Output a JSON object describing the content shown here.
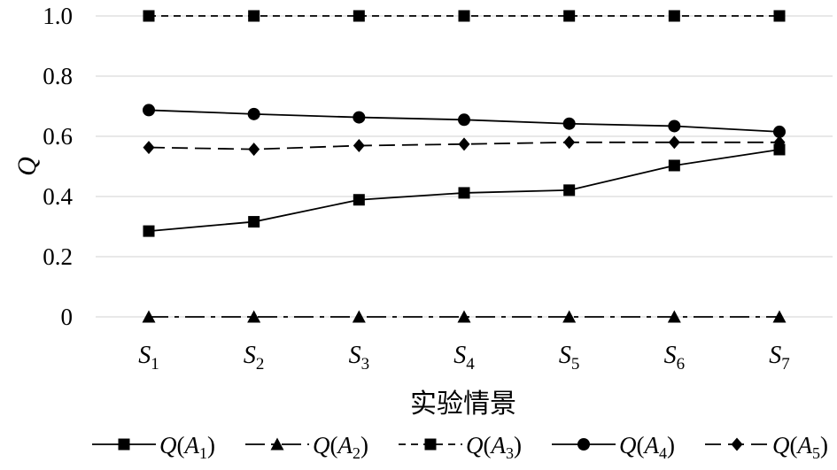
{
  "chart_data": {
    "type": "line",
    "title": "",
    "xlabel": "实验情景",
    "ylabel": "Q",
    "ylim": [
      0,
      1.0
    ],
    "yticks": [
      "0",
      "0.2",
      "0.4",
      "0.6",
      "0.8",
      "1.0"
    ],
    "ytick_values": [
      0,
      0.2,
      0.4,
      0.6,
      0.8,
      1.0
    ],
    "grid": true,
    "legend_position": "bottom",
    "categories": [
      {
        "base": "S",
        "sub": "1"
      },
      {
        "base": "S",
        "sub": "2"
      },
      {
        "base": "S",
        "sub": "3"
      },
      {
        "base": "S",
        "sub": "4"
      },
      {
        "base": "S",
        "sub": "5"
      },
      {
        "base": "S",
        "sub": "6"
      },
      {
        "base": "S",
        "sub": "7"
      }
    ],
    "series": [
      {
        "name": {
          "fn": "Q(",
          "var": "A",
          "sub": "1",
          "close": ")"
        },
        "line": "solid",
        "marker": "square",
        "values": [
          0.285,
          0.316,
          0.389,
          0.412,
          0.421,
          0.503,
          0.556
        ]
      },
      {
        "name": {
          "fn": "Q(",
          "var": "A",
          "sub": "2",
          "close": ")"
        },
        "line": "dashdot",
        "marker": "triangle",
        "values": [
          0,
          0,
          0,
          0,
          0,
          0,
          0
        ]
      },
      {
        "name": {
          "fn": "Q(",
          "var": "A",
          "sub": "3",
          "close": ")"
        },
        "line": "shortdash",
        "marker": "square",
        "values": [
          1.0,
          1.0,
          1.0,
          1.0,
          1.0,
          1.0,
          1.0
        ]
      },
      {
        "name": {
          "fn": "Q(",
          "var": "A",
          "sub": "4",
          "close": ")"
        },
        "line": "solid",
        "marker": "circle",
        "values": [
          0.687,
          0.674,
          0.663,
          0.655,
          0.642,
          0.634,
          0.615
        ]
      },
      {
        "name": {
          "fn": "Q(",
          "var": "A",
          "sub": "5",
          "close": ")"
        },
        "line": "longdash",
        "marker": "diamond",
        "values": [
          0.563,
          0.557,
          0.569,
          0.574,
          0.58,
          0.58,
          0.58
        ]
      }
    ]
  }
}
